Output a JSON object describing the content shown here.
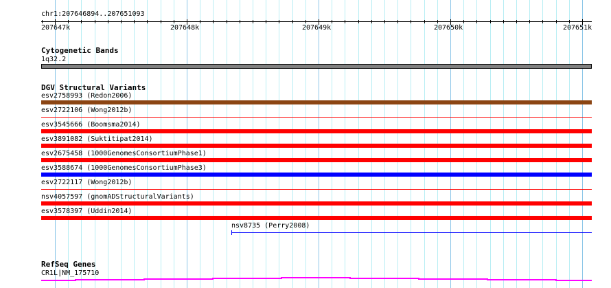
{
  "ruler": {
    "location": "chr1:207646894..207651093",
    "ticks": [
      "207647k",
      "207648k",
      "207649k",
      "207650k",
      "207651k"
    ]
  },
  "cytoband": {
    "title": "Cytogenetic Bands",
    "label": "1q32.2",
    "color": "#808080"
  },
  "dgv": {
    "title": "DGV Structural Variants",
    "items": [
      {
        "label": "esv2758993 (Redon2006)",
        "color": "#8b4513",
        "thick": true
      },
      {
        "label": "esv2722106 (Wong2012b)",
        "color": "#ff0000",
        "thick": false
      },
      {
        "label": "esv3545666 (Boomsma2014)",
        "color": "#ff0000",
        "thick": true
      },
      {
        "label": "esv3891082 (Suktitipat2014)",
        "color": "#ff0000",
        "thick": true
      },
      {
        "label": "esv2675458 (1000GenomesConsortiumPhase1)",
        "color": "#ff0000",
        "thick": true
      },
      {
        "label": "esv3588674 (1000GenomesConsortiumPhase3)",
        "color": "#0000ff",
        "thick": true
      },
      {
        "label": "esv2722117 (Wong2012b)",
        "color": "#ff0000",
        "thick": false
      },
      {
        "label": "nsv4057597 (gnomADStructuralVariants)",
        "color": "#ff0000",
        "thick": true
      },
      {
        "label": "esv3578397 (Uddin2014)",
        "color": "#ff0000",
        "thick": true
      }
    ],
    "extra": {
      "label": "nsv8735 (Perry2008)",
      "color": "#0000ff"
    }
  },
  "refseq": {
    "title": "RefSeq Genes",
    "label": "CR1L|NM_175710",
    "color": "#ff00ff"
  }
}
